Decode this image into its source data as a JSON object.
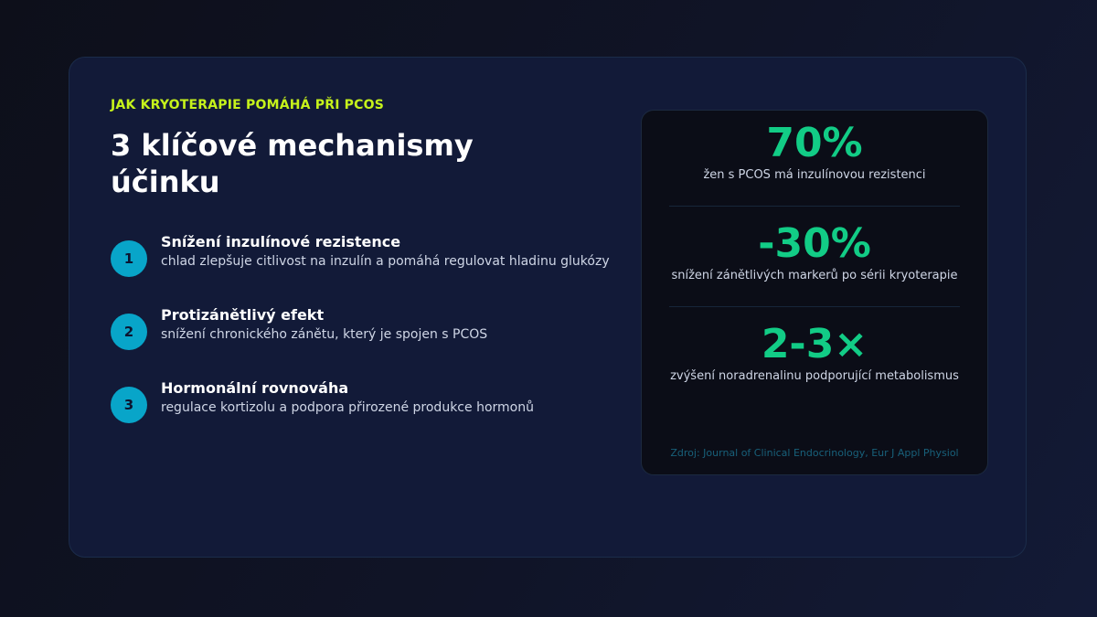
{
  "eyebrow": "JAK KRYOTERAPIE POMÁHÁ PŘI PCOS",
  "title": "3 klíčové mechanismy účinku",
  "mechanisms": [
    {
      "number": "1",
      "title": "Snížení inzulínové rezistence",
      "description": "chlad zlepšuje citlivost na inzulín a pomáhá regulovat hladinu glukózy"
    },
    {
      "number": "2",
      "title": "Protizánětlivý efekt",
      "description": "snížení chronického zánětu, který je spojen s PCOS"
    },
    {
      "number": "3",
      "title": "Hormonální rovnováha",
      "description": "regulace kortizolu a podpora přirozené produkce hormonů"
    }
  ],
  "stats": [
    {
      "value": "70%",
      "label": "žen s PCOS má inzulínovou rezistenci"
    },
    {
      "value": "-30%",
      "label": "snížení zánětlivých markerů po sérii kryoterapie"
    },
    {
      "value": "2-3×",
      "label": "zvýšení noradrenalinu podporující metabolismus"
    }
  ],
  "source": "Zdroj: Journal of Clinical Endocrinology, Eur J Appl Physiol",
  "colors": {
    "accent_lime": "#c6f21b",
    "accent_cyan": "#08a5c9",
    "accent_green": "#12cc86",
    "card_bg": "#121a38",
    "stats_bg": "#0b0d17"
  }
}
